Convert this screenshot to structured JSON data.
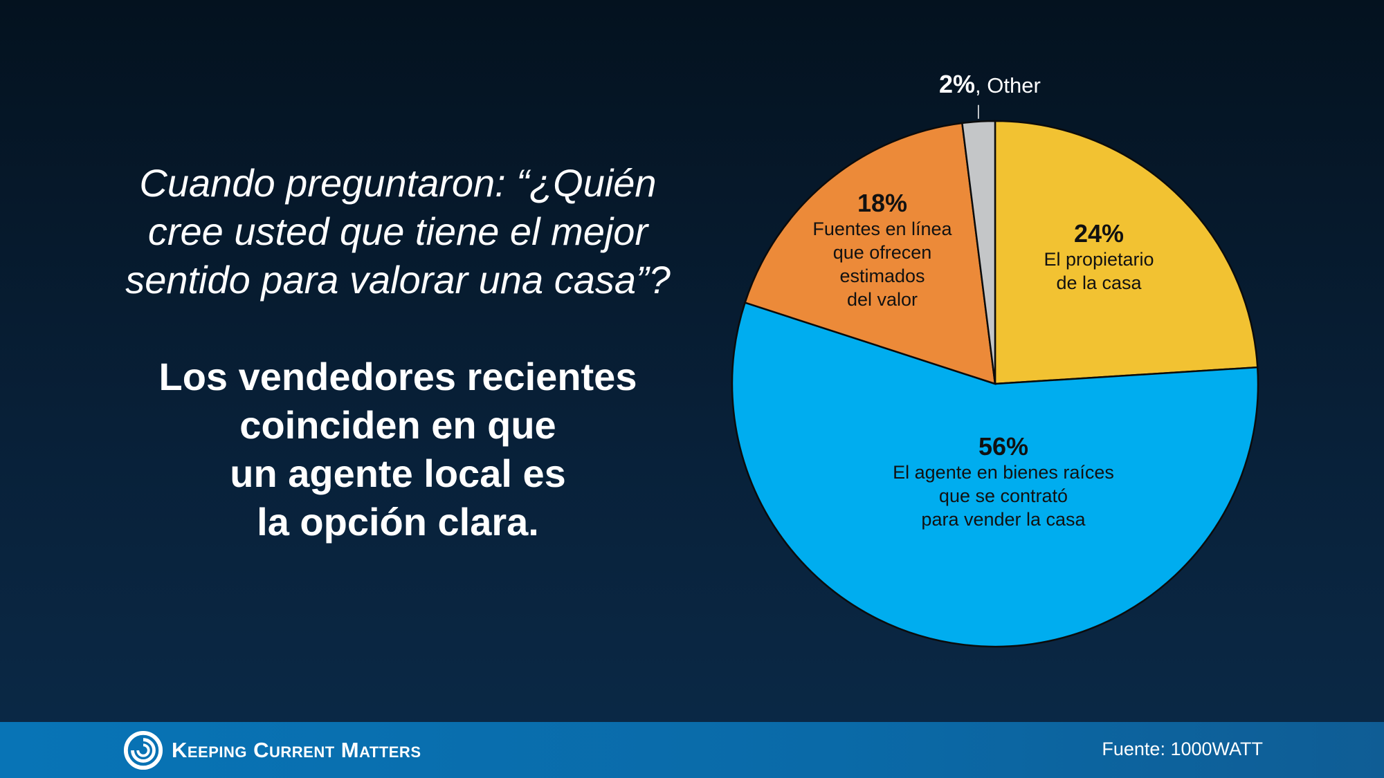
{
  "question_text": "Cuando preguntaron: “¿Quién\ncree usted que tiene el mejor\nsentido para valorar una casa”?",
  "statement_text": "Los vendedores recientes\ncoinciden en que\nun agente local es\nla opción clara.",
  "footer": {
    "brand": "Keeping Current Matters",
    "source": "Fuente: 1000WATT"
  },
  "chart_data": {
    "type": "pie",
    "slices": [
      {
        "pct_label": "24%",
        "value": 24,
        "label_lines": [
          "El propietario",
          "de la casa"
        ],
        "color": "#f2c232"
      },
      {
        "pct_label": "56%",
        "value": 56,
        "label_lines": [
          "El agente en bienes raíces",
          "que se contrató",
          "para vender la casa"
        ],
        "color": "#00adef"
      },
      {
        "pct_label": "18%",
        "value": 18,
        "label_lines": [
          "Fuentes en línea",
          "que ofrecen",
          "estimados",
          "del valor"
        ],
        "color": "#ec8a39"
      },
      {
        "pct_label": "2%",
        "value": 2,
        "label_lines": [
          ", Other"
        ],
        "color": "#c4c6c8"
      }
    ]
  }
}
